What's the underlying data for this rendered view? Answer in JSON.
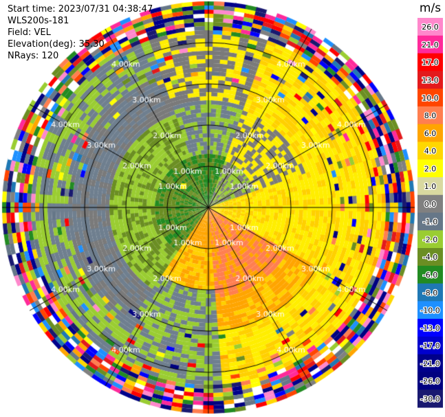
{
  "header": {
    "start_time": "Start time: 2023/07/31 04:38:47",
    "station": "WLS200s-181",
    "field": "Field: VEL",
    "elevation": "Elevation(deg): 35.30",
    "nrays": "NRays: 120"
  },
  "chart_data": {
    "type": "polar-ppi",
    "field": "VEL",
    "units": "m/s",
    "nrays": 120,
    "elevation_deg": 35.3,
    "range_rings_km": [
      1.0,
      2.0,
      3.0,
      4.0
    ],
    "range_ring_labels": [
      "1.00km",
      "2.00km",
      "3.00km",
      "4.00km"
    ],
    "max_range_km": 5.0,
    "spokes_deg": [
      0,
      30,
      60,
      90,
      120,
      150,
      180,
      210,
      240,
      270,
      300,
      330
    ],
    "colorbar": {
      "title": "m/s",
      "ticks": [
        "26.0",
        "21.0",
        "17.0",
        "13.0",
        "10.0",
        "8.0",
        "6.0",
        "4.0",
        "2.0",
        "1.0",
        "0.0",
        "-1.0",
        "-2.0",
        "-4.0",
        "-6.0",
        "-8.0",
        "-10.0",
        "-13.0",
        "-17.0",
        "-21.0",
        "-26.0",
        "-30.0"
      ],
      "colors": [
        "#ff88cc",
        "#ff2a9a",
        "#ff0000",
        "#e31a1c",
        "#ff4500",
        "#ff7f50",
        "#ffa500",
        "#ffd700",
        "#ffff00",
        "#d9d9a0",
        "#808080",
        "#667788",
        "#9acd32",
        "#6b8e23",
        "#228b22",
        "#1f78b4",
        "#1e90ff",
        "#0000ff",
        "#0000cd",
        "#00008b",
        "#000080",
        "#191970"
      ]
    }
  }
}
